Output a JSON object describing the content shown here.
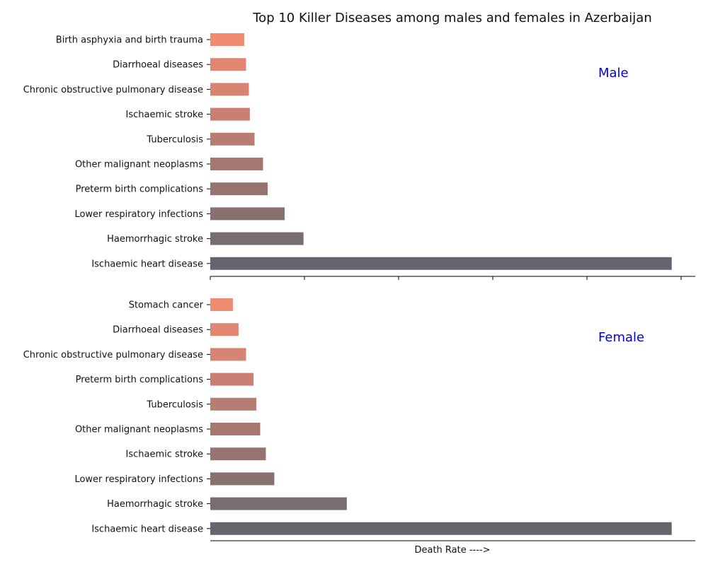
{
  "chart_data": [
    {
      "type": "bar",
      "orientation": "horizontal",
      "title": "Top 10 Killer Diseases among males and females in Azerbaijan",
      "panel_label": "Male",
      "panel_label_color": "#0000dd",
      "categories": [
        "Birth asphyxia and birth trauma",
        "Diarrhoeal diseases",
        "Chronic obstructive pulmonary disease",
        "Ischaemic stroke",
        "Tuberculosis",
        "Other malignant neoplasms",
        "Preterm birth complications",
        "Lower respiratory infections",
        "Haemorrhagic stroke",
        "Ischaemic heart disease"
      ],
      "values": [
        3.6,
        3.8,
        4.1,
        4.2,
        4.7,
        5.6,
        6.1,
        7.9,
        9.9,
        49.0
      ],
      "xlim": [
        0,
        51.5
      ],
      "x_ticks": [
        0,
        10,
        20,
        30,
        40,
        50
      ],
      "x_tick_labels_shown": false,
      "xlabel": "",
      "colors": [
        "#f08a70",
        "#e38671",
        "#d78472",
        "#cb7f72",
        "#b77c72",
        "#a67670",
        "#977370",
        "#88706f",
        "#786d6f",
        "#65656f"
      ],
      "grid": false
    },
    {
      "type": "bar",
      "orientation": "horizontal",
      "title": "",
      "panel_label": "Female",
      "panel_label_color": "#0000dd",
      "categories": [
        "Stomach cancer",
        "Diarrhoeal diseases",
        "Chronic obstructive pulmonary disease",
        "Preterm birth complications",
        "Tuberculosis",
        "Other malignant neoplasms",
        "Ischaemic stroke",
        "Lower respiratory infections",
        "Haemorrhagic stroke",
        "Ischaemic heart disease"
      ],
      "values": [
        2.4,
        3.0,
        3.8,
        4.6,
        4.9,
        5.3,
        5.9,
        6.8,
        14.5,
        49.0
      ],
      "xlim": [
        0,
        51.5
      ],
      "x_ticks": [],
      "xlabel": "Death Rate ---->",
      "colors": [
        "#f08a70",
        "#e38671",
        "#d78472",
        "#cb7f72",
        "#b77c72",
        "#a67670",
        "#977370",
        "#88706f",
        "#786d6f",
        "#65656f"
      ],
      "grid": false
    }
  ]
}
